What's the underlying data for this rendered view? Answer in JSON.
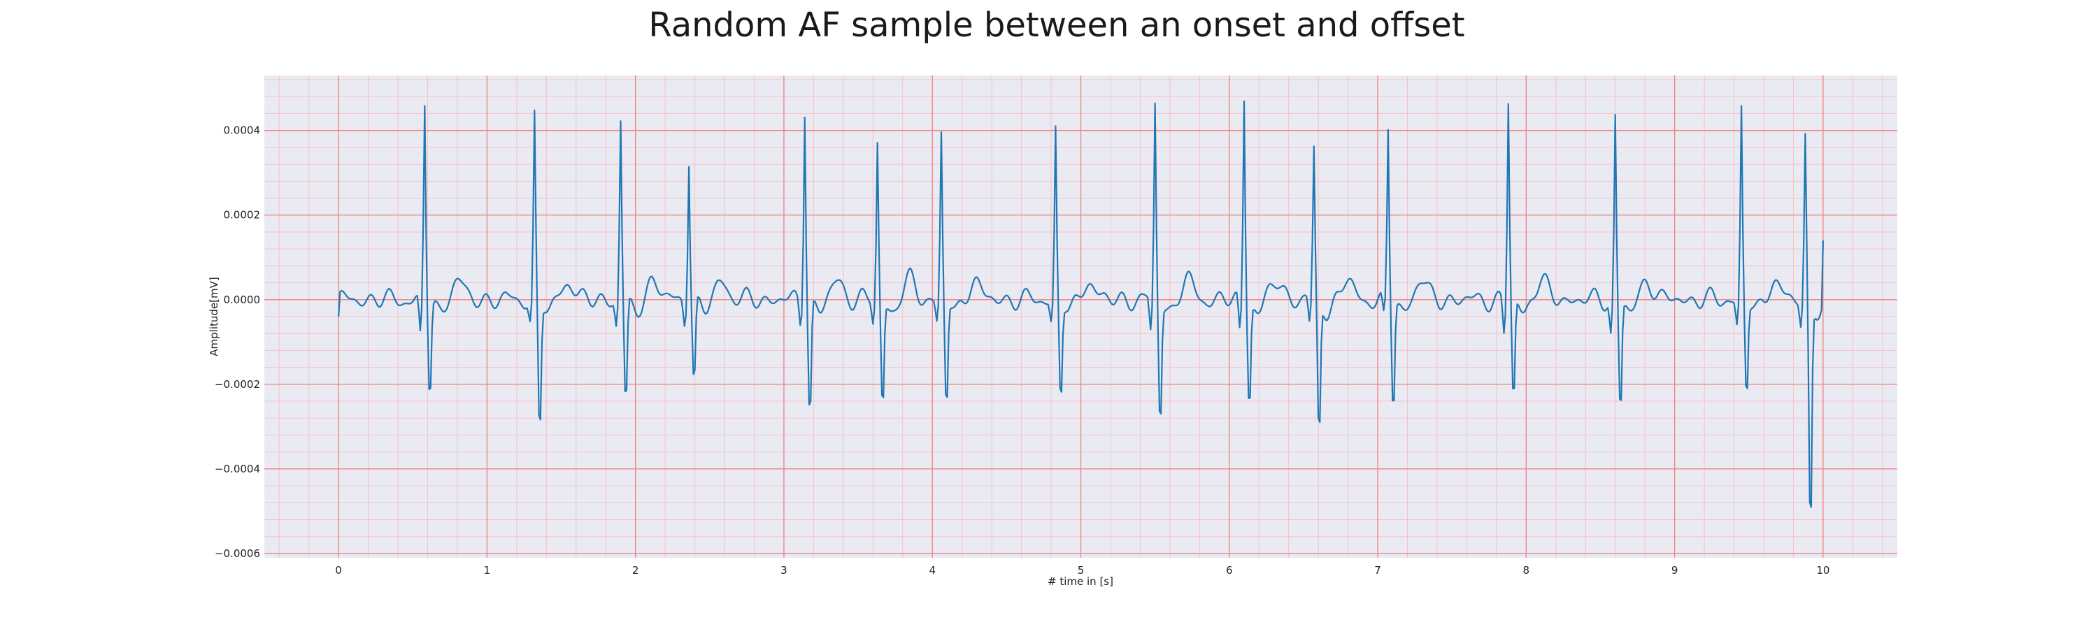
{
  "chart_data": {
    "type": "line",
    "title": "Random AF sample between an onset and offset",
    "xlabel": "# time in [s]",
    "ylabel": "Amplitude[mV]",
    "xlim": [
      -0.5,
      10.5
    ],
    "ylim": [
      -0.00061,
      0.00053
    ],
    "x_ticks": [
      0,
      1,
      2,
      3,
      4,
      5,
      6,
      7,
      8,
      9,
      10
    ],
    "x_tick_labels": [
      "0",
      "1",
      "2",
      "3",
      "4",
      "5",
      "6",
      "7",
      "8",
      "9",
      "10"
    ],
    "y_ticks": [
      0.0004,
      0.0002,
      0.0,
      -0.0002,
      -0.0004,
      -0.0006
    ],
    "y_tick_labels": [
      "0.0004",
      "0.0002",
      "0.0000",
      "−0.0002",
      "−0.0004",
      "−0.0006"
    ],
    "grid": true,
    "minor_grid": true,
    "colors": {
      "plot_bg": "#eaeaf2",
      "major_grid": "#f08080",
      "minor_grid": "#f6c2c8",
      "line": "#1f77b4"
    },
    "series": [
      {
        "color": "#1f77b4",
        "beats": [
          {
            "t": 0.58,
            "r": 0.00046,
            "q": -9e-05,
            "s": -0.00023
          },
          {
            "t": 1.32,
            "r": 0.00043,
            "q": -5e-05,
            "s": -0.00032
          },
          {
            "t": 1.9,
            "r": 0.00042,
            "q": -6e-05,
            "s": -0.00026
          },
          {
            "t": 2.36,
            "r": 0.00034,
            "q": -5e-05,
            "s": -0.0002
          },
          {
            "t": 3.14,
            "r": 0.00046,
            "q": -5e-05,
            "s": -0.00028
          },
          {
            "t": 3.63,
            "r": 0.00037,
            "q": -5e-05,
            "s": -0.00026
          },
          {
            "t": 4.06,
            "r": 0.00039,
            "q": -5e-05,
            "s": -0.00026
          },
          {
            "t": 4.83,
            "r": 0.0004,
            "q": -5e-05,
            "s": -0.00024
          },
          {
            "t": 5.5,
            "r": 0.00046,
            "q": -8e-05,
            "s": -0.00029
          },
          {
            "t": 6.1,
            "r": 0.00048,
            "q": -8e-05,
            "s": -0.00025
          },
          {
            "t": 6.57,
            "r": 0.00035,
            "q": -6e-05,
            "s": -0.00033
          },
          {
            "t": 7.07,
            "r": 0.0004,
            "q": -5e-05,
            "s": -0.00026
          },
          {
            "t": 7.88,
            "r": 0.00047,
            "q": -8e-05,
            "s": -0.00025
          },
          {
            "t": 8.6,
            "r": 0.00043,
            "q": -8e-05,
            "s": -0.00027
          },
          {
            "t": 9.45,
            "r": 0.00045,
            "q": -6e-05,
            "s": -0.00023
          },
          {
            "t": 9.88,
            "r": 0.00038,
            "q": -6e-05,
            "s": -0.00056
          }
        ],
        "start": {
          "t": 0.0,
          "v": -4e-05
        },
        "end": {
          "t": 10.0,
          "v": 0.00014
        },
        "samples_per_second": 100
      }
    ]
  }
}
